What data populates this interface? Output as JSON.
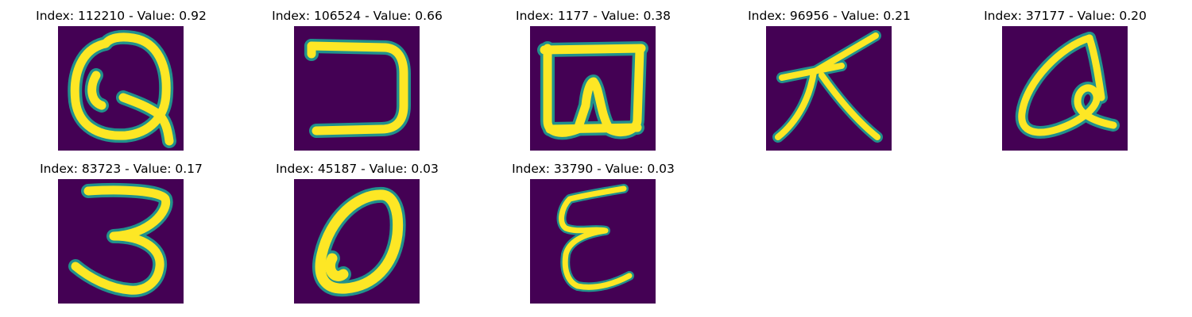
{
  "panels": [
    {
      "title": "Index: 112210 - Value: 0.92",
      "glyph": "Q"
    },
    {
      "title": "Index: 106524 - Value: 0.66",
      "glyph": "reversed-C"
    },
    {
      "title": "Index: 1177 - Value: 0.38",
      "glyph": "W-in-box"
    },
    {
      "title": "Index: 96956 - Value: 0.21",
      "glyph": "tian-character"
    },
    {
      "title": "Index: 37177 - Value: 0.20",
      "glyph": "a"
    },
    {
      "title": "Index: 83723 - Value: 0.17",
      "glyph": "3"
    },
    {
      "title": "Index: 45187 - Value: 0.03",
      "glyph": "O"
    },
    {
      "title": "Index: 33790 - Value: 0.03",
      "glyph": "epsilon"
    }
  ],
  "colors": {
    "background": "#440154",
    "stroke_edge": "#21918c",
    "stroke_core": "#fde725"
  }
}
